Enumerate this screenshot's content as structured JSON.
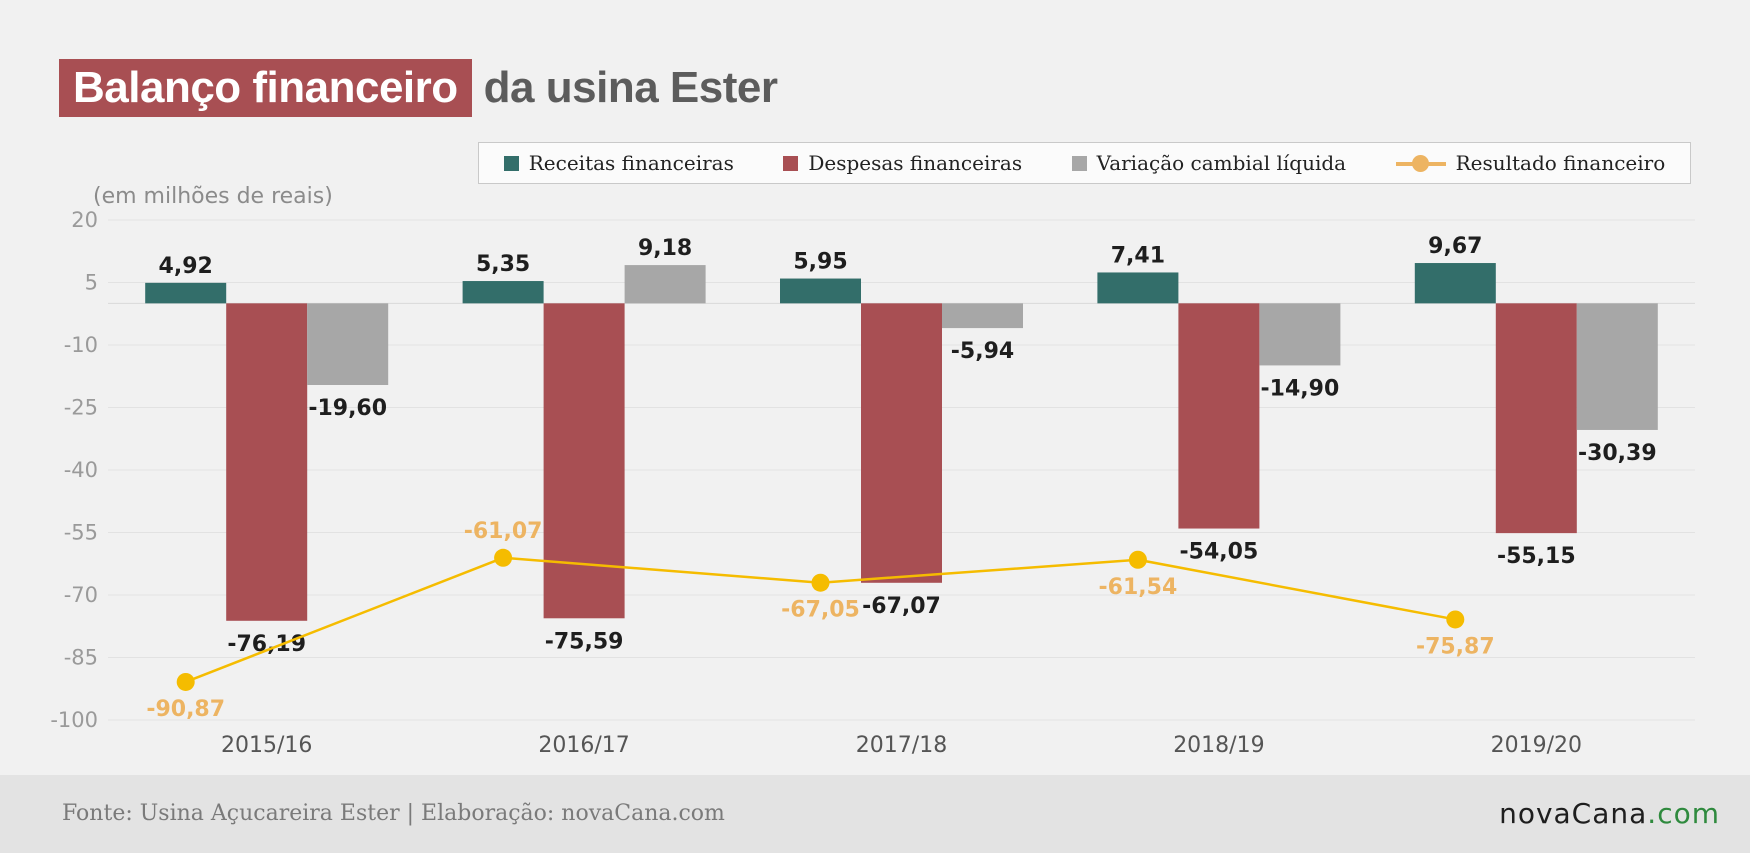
{
  "title": {
    "highlight": "Balanço financeiro",
    "rest": "da usina Ester"
  },
  "unit_label": "(em milhões de reais)",
  "legend": [
    {
      "label": "Receitas financeiras",
      "color": "#336e6a"
    },
    {
      "label": "Despesas financeiras",
      "color": "#a84f53"
    },
    {
      "label": "Variação cambial líquida",
      "color": "#a7a7a7"
    },
    {
      "label": "Resultado financeiro",
      "color": "#edb462"
    }
  ],
  "footer": {
    "source": "Fonte: Usina Açucareira Ester | Elaboração: novaCana.com",
    "logo_main": "novaCana",
    "logo_tld": ".com"
  },
  "chart_data": {
    "type": "bar",
    "categories": [
      "2015/16",
      "2016/17",
      "2017/18",
      "2018/19",
      "2019/20"
    ],
    "series": [
      {
        "name": "Receitas financeiras",
        "type": "bar",
        "color": "#336e6a",
        "values": [
          4.92,
          5.35,
          5.95,
          7.41,
          9.67
        ],
        "labels": [
          "4,92",
          "5,35",
          "5,95",
          "7,41",
          "9,67"
        ]
      },
      {
        "name": "Despesas financeiras",
        "type": "bar",
        "color": "#a84f53",
        "values": [
          -76.19,
          -75.59,
          -67.07,
          -54.05,
          -55.15
        ],
        "labels": [
          "-76,19",
          "-75,59",
          "-67,07",
          "-54,05",
          "-55,15"
        ]
      },
      {
        "name": "Variação cambial líquida",
        "type": "bar",
        "color": "#a7a7a7",
        "values": [
          -19.6,
          9.18,
          -5.94,
          -14.9,
          -30.39
        ],
        "labels": [
          "-19,60",
          "9,18",
          "-5,94",
          "-14,90",
          "-30,39"
        ]
      },
      {
        "name": "Resultado financeiro",
        "type": "line",
        "color": "#f5bc00",
        "label_color": "#edb462",
        "values": [
          -90.87,
          -61.07,
          -67.05,
          -61.54,
          -75.87
        ],
        "labels": [
          "-90,87",
          "-61,07",
          "-67,05",
          "-61,54",
          "-75,87"
        ]
      }
    ],
    "ylim": [
      -100,
      20
    ],
    "yticks": [
      20,
      5,
      -10,
      -25,
      -40,
      -55,
      -70,
      -85,
      -100
    ],
    "grid": true,
    "legend_position": "top-right"
  }
}
